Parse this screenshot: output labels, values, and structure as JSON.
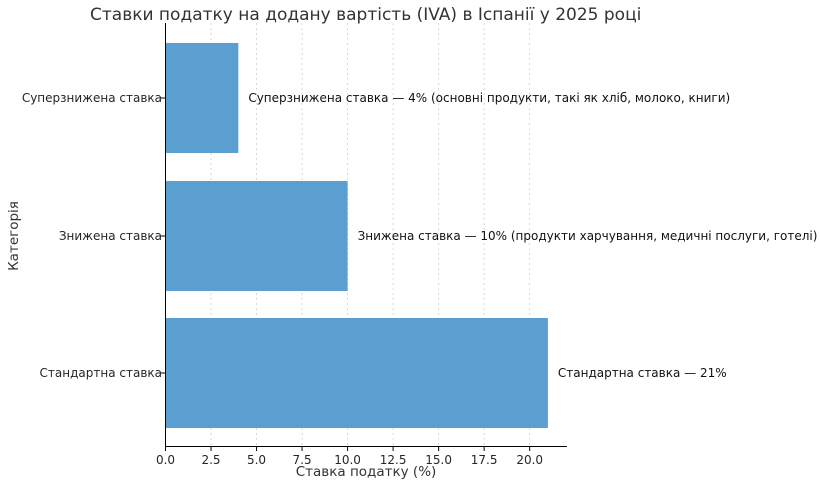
{
  "chart_data": {
    "type": "bar",
    "orientation": "horizontal",
    "title": "Ставки податку на додану вартість (IVA) в Іспанії у 2025 році",
    "xlabel": "Ставка податку (%)",
    "ylabel": "Категорія",
    "categories": [
      "Стандартна ставка",
      "Знижена ставка",
      "Суперзнижена ставка"
    ],
    "values": [
      21,
      10,
      4
    ],
    "annotations": [
      "Стандартна ставка — 21%",
      "Знижена ставка — 10% (продукти харчування, медичні послуги, готелі)",
      "Суперзнижена ставка — 4% (основні продукти, такі як хліб, молоко, книги)"
    ],
    "xlim": [
      0,
      22.05
    ],
    "xticks": [
      "0.0",
      "2.5",
      "5.0",
      "7.5",
      "10.0",
      "12.5",
      "15.0",
      "17.5",
      "20.0"
    ],
    "grid": "vertical dashed",
    "bar_color": "#5a9fcf"
  }
}
